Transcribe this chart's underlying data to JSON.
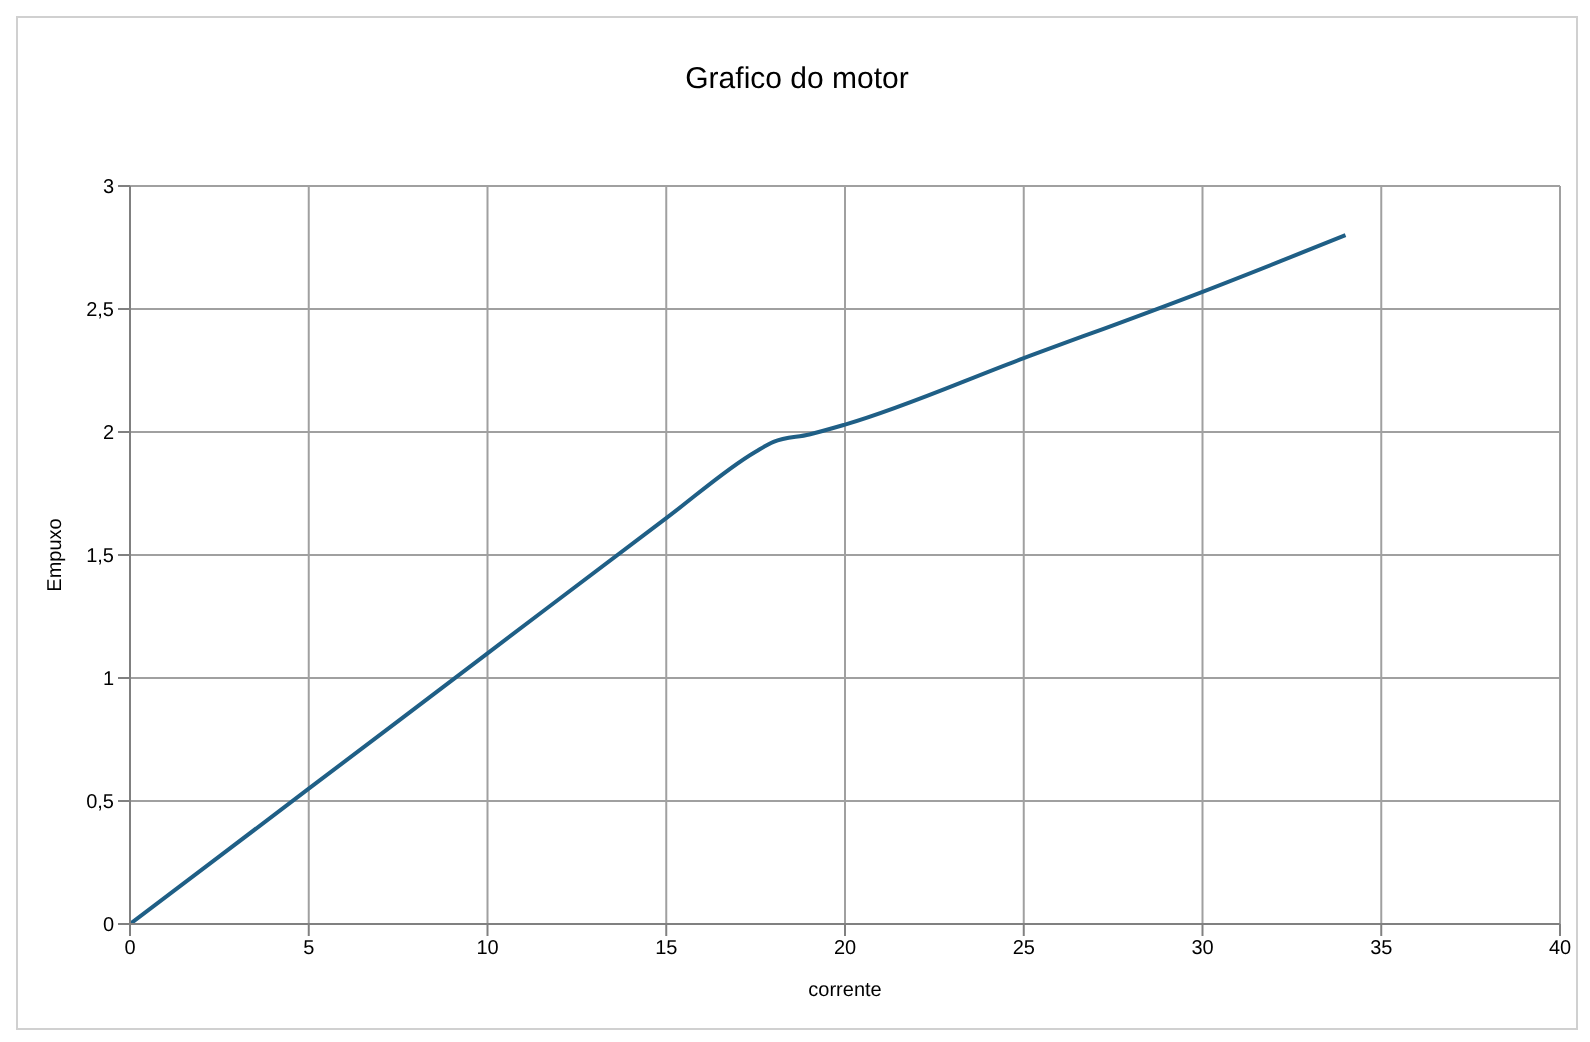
{
  "chart_data": {
    "type": "line",
    "title": "Grafico do motor",
    "xlabel": "corrente",
    "ylabel": "Empuxo",
    "x": [
      0,
      5,
      10,
      15,
      17.5,
      18,
      19,
      20,
      25,
      30,
      34
    ],
    "series": [
      {
        "color": "#1f5f86",
        "values": [
          0,
          0.55,
          1.1,
          1.65,
          1.92,
          1.96,
          1.99,
          2.03,
          2.3,
          2.57,
          2.8
        ]
      }
    ],
    "xlim": [
      0,
      40
    ],
    "xticks": [
      0,
      5,
      10,
      15,
      20,
      25,
      30,
      35,
      40
    ],
    "ylim": [
      0,
      3
    ],
    "yticks": [
      0,
      {
        "value": 0.5,
        "label": "0,5"
      },
      1,
      {
        "value": 1.5,
        "label": "1,5"
      },
      2,
      {
        "value": 2.5,
        "label": "2,5"
      },
      3
    ],
    "grid": true,
    "marker": "none",
    "line_style": "solid",
    "legend": false
  }
}
